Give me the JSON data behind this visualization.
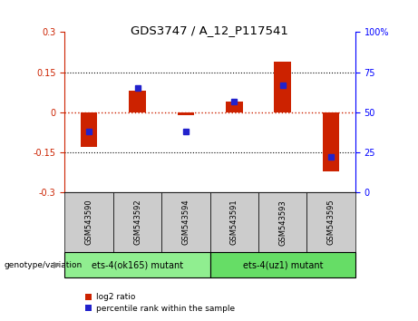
{
  "title": "GDS3747 / A_12_P117541",
  "samples": [
    "GSM543590",
    "GSM543592",
    "GSM543594",
    "GSM543591",
    "GSM543593",
    "GSM543595"
  ],
  "log2_ratio": [
    -0.13,
    0.08,
    -0.01,
    0.04,
    0.19,
    -0.22
  ],
  "percentile_rank": [
    38,
    65,
    38,
    57,
    67,
    22
  ],
  "groups": [
    {
      "label": "ets-4(ok165) mutant",
      "indices": [
        0,
        1,
        2
      ],
      "color": "#90ee90"
    },
    {
      "label": "ets-4(uz1) mutant",
      "indices": [
        3,
        4,
        5
      ],
      "color": "#66dd66"
    }
  ],
  "ylim_left": [
    -0.3,
    0.3
  ],
  "ylim_right": [
    0,
    100
  ],
  "yticks_left": [
    -0.3,
    -0.15,
    0,
    0.15,
    0.3
  ],
  "yticks_right": [
    0,
    25,
    50,
    75,
    100
  ],
  "red_color": "#cc2200",
  "blue_color": "#2222cc",
  "label_bg": "#cccccc",
  "genotype_label": "genotype/variation"
}
